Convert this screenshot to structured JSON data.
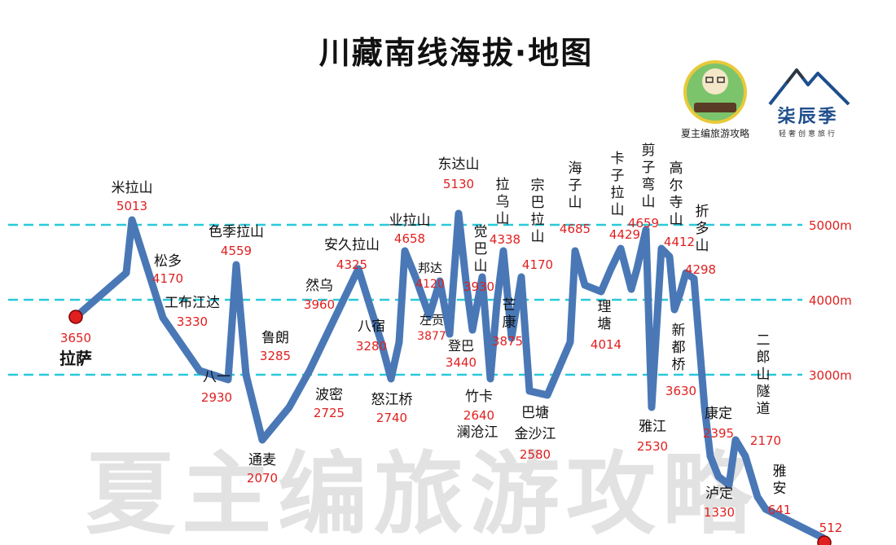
{
  "chart_data": {
    "type": "line",
    "title": "川藏南线海拔·地图",
    "units": "m",
    "reference_lines": [
      {
        "value": 5000,
        "label": "5000m"
      },
      {
        "value": 4000,
        "label": "4000m"
      },
      {
        "value": 3000,
        "label": "3000m"
      }
    ],
    "line_color": "#4a78b6",
    "grid_color": "#29c9d9",
    "value_color": "#e02020",
    "points": [
      {
        "name": "拉萨",
        "value": "3650"
      },
      {
        "name": "松多",
        "value": "4170"
      },
      {
        "name": "米拉山",
        "value": "5013"
      },
      {
        "name": "工布江达",
        "value": "3330"
      },
      {
        "name": "八一",
        "value": "2930"
      },
      {
        "name": "色季拉山",
        "value": "4559"
      },
      {
        "name": "鲁朗",
        "value": "3285"
      },
      {
        "name": "通麦",
        "value": "2070"
      },
      {
        "name": "波密",
        "value": "2725"
      },
      {
        "name": "然乌",
        "value": "3960"
      },
      {
        "name": "安久拉山",
        "value": "4325"
      },
      {
        "name": "八宿",
        "value": "3280"
      },
      {
        "name": "怒江桥",
        "value": "2740"
      },
      {
        "name": "业拉山",
        "value": "4658"
      },
      {
        "name": "邦达",
        "value": "4120"
      },
      {
        "name": "左贡",
        "value": "3877"
      },
      {
        "name": "东达山",
        "value": "5130"
      },
      {
        "name": "登巴",
        "value": "3440"
      },
      {
        "name": "觉巴山",
        "value": "3930"
      },
      {
        "name": "竹卡",
        "value": "2640"
      },
      {
        "name": "澜沧江",
        "value": ""
      },
      {
        "name": "拉乌山",
        "value": "4338"
      },
      {
        "name": "芒康",
        "value": "3875"
      },
      {
        "name": "宗巴拉山",
        "value": "4170"
      },
      {
        "name": "巴塘",
        "value": ""
      },
      {
        "name": "金沙江",
        "value": "2580"
      },
      {
        "name": "海子山",
        "value": "4685"
      },
      {
        "name": "理塘",
        "value": "4014"
      },
      {
        "name": "卡子拉山",
        "value": "4429"
      },
      {
        "name": "剪子弯山",
        "value": "4659"
      },
      {
        "name": "雅江",
        "value": "2530"
      },
      {
        "name": "高尔寺山",
        "value": "4412"
      },
      {
        "name": "新都桥",
        "value": "3630"
      },
      {
        "name": "折多山",
        "value": "4298"
      },
      {
        "name": "康定",
        "value": "2395"
      },
      {
        "name": "二郎山隧道",
        "value": "2170"
      },
      {
        "name": "泸定",
        "value": "1330"
      },
      {
        "name": "雅安",
        "value": "641"
      },
      {
        "name": "",
        "value": "512"
      }
    ]
  },
  "branding": {
    "left_logo_caption": "夏主编旅游攻略",
    "right_logo_name": "柒辰季",
    "right_logo_slogan": "轻奢创意旅行",
    "watermark": "夏主编旅游攻略"
  }
}
